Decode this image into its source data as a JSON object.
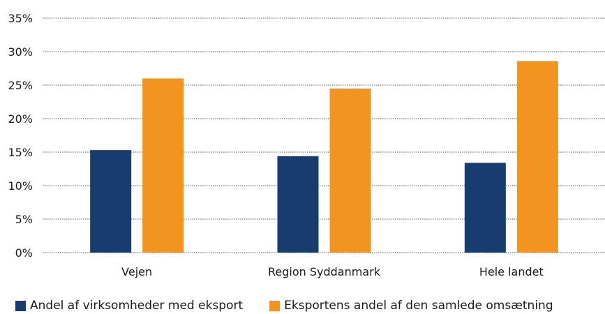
{
  "chart_data": {
    "type": "bar",
    "categories": [
      "Vejen",
      "Region Syddanmark",
      "Hele landet"
    ],
    "series": [
      {
        "name": "Andel af virksomheder med eksport",
        "values": [
          15.3,
          14.4,
          13.4
        ],
        "color": "#173c70"
      },
      {
        "name": "Eksportens andel af den samlede omsætning",
        "values": [
          26.0,
          24.5,
          28.6
        ],
        "color": "#f39420"
      }
    ],
    "y_ticks": [
      "0%",
      "5%",
      "10%",
      "15%",
      "20%",
      "25%",
      "30%",
      "35%"
    ],
    "ylim": [
      0,
      35
    ],
    "grid": true,
    "legend_position": "bottom"
  }
}
